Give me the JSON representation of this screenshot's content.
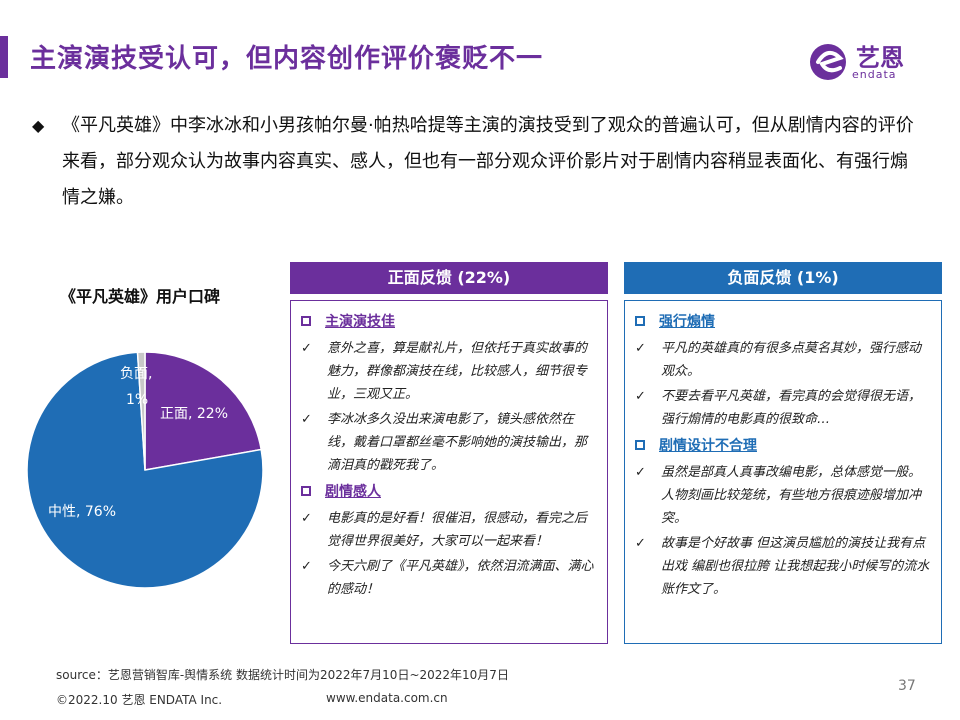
{
  "header": {
    "title": "主演演技受认可，但内容创作评价褒贬不一",
    "logo_text": "艺恩",
    "logo_sub": "endata"
  },
  "bullet": {
    "mark": "◆",
    "text": "《平凡英雄》中李冰冰和小男孩帕尔曼·帕热哈提等主演的演技受到了观众的普遍认可，但从剧情内容的评价来看，部分观众认为故事内容真实、感人，但也有一部分观众评价影片对于剧情内容稍显表面化、有强行煽情之嫌。"
  },
  "chart_data": {
    "type": "pie",
    "title": "《平凡英雄》用户口碑",
    "slices": [
      {
        "label": "正面",
        "value": 22,
        "color": "#6b2f9c"
      },
      {
        "label": "中性",
        "value": 76,
        "color": "#1f6db5"
      },
      {
        "label": "负面",
        "value": 1,
        "color": "#c8c8c8"
      }
    ],
    "data_labels": [
      "正面, 22%",
      "中性, 76%",
      "负面,",
      "1%"
    ]
  },
  "positive": {
    "header": "正面反馈 (22%)",
    "sections": [
      {
        "title": "主演演技佳",
        "items": [
          "意外之喜，算是献礼片，但依托于真实故事的魅力，群像都演技在线，比较感人，细节很专业，三观又正。",
          "李冰冰多久没出来演电影了，镜头感依然在线，戴着口罩都丝毫不影响她的演技输出，那滴泪真的戳死我了。"
        ]
      },
      {
        "title": "剧情感人",
        "items": [
          "电影真的是好看！很催泪，很感动，看完之后觉得世界很美好，大家可以一起来看！",
          "今天六刷了《平凡英雄》，依然泪流满面、满心的感动！"
        ]
      }
    ]
  },
  "negative": {
    "header": "负面反馈 (1%)",
    "sections": [
      {
        "title": "强行煽情",
        "items": [
          "平凡的英雄真的有很多点莫名其妙，强行感动观众。",
          "不要去看平凡英雄，看完真的会觉得很无语，强行煽情的电影真的很致命…"
        ]
      },
      {
        "title": "剧情设计不合理",
        "items": [
          "虽然是部真人真事改编电影，总体感觉一般。人物刻画比较笼统，有些地方很痕迹般增加冲突。",
          "故事是个好故事 但这演员尴尬的演技让我有点出戏 编剧也很拉胯 让我想起我小时候写的流水账作文了。"
        ]
      }
    ]
  },
  "footer": {
    "source": "source：艺恩营销智库-舆情系统      数据统计时间为2022年7月10日~2022年10月7日",
    "copyright": "©2022.10 艺恩 ENDATA Inc.",
    "website": "www.endata.com.cn",
    "page": "37"
  },
  "icons": {
    "bullet": "diamond-icon",
    "check": "checkmark-icon",
    "section": "square-box-icon"
  },
  "colors": {
    "brand_purple": "#6b2f9c",
    "brand_blue": "#1f6db5"
  }
}
